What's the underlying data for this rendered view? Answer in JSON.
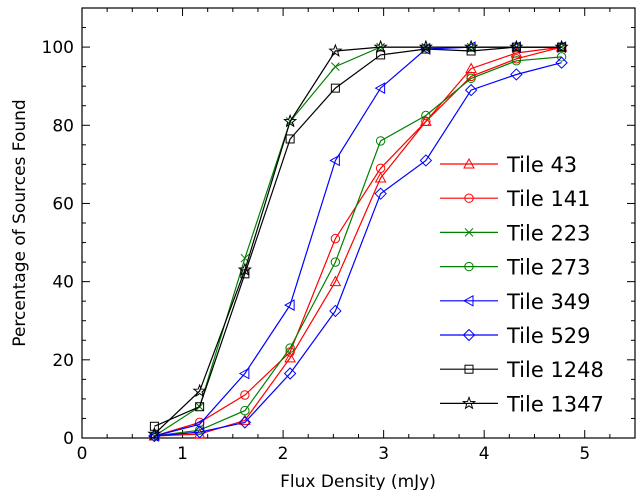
{
  "chart_data": {
    "type": "line",
    "title": "",
    "xlabel": "Flux Density (mJy)",
    "ylabel": "Percentage of Sources Found",
    "xlim": [
      0,
      5.5
    ],
    "ylim": [
      0,
      110
    ],
    "xticks": [
      0,
      1,
      2,
      3,
      4,
      5
    ],
    "yticks": [
      0,
      20,
      40,
      60,
      80,
      100
    ],
    "grid": false,
    "legend_position": "center-right",
    "x": [
      0.72,
      1.17,
      1.62,
      2.07,
      2.52,
      2.97,
      3.42,
      3.87,
      4.32,
      4.77
    ],
    "series": [
      {
        "name": "Tile 43",
        "color": "#ff0000",
        "marker": "triangle-up",
        "values": [
          0.5,
          1.0,
          4.5,
          20.5,
          40.0,
          66.5,
          81.0,
          94.5,
          98.5,
          100.0
        ]
      },
      {
        "name": "Tile 141",
        "color": "#ff0000",
        "marker": "circle",
        "values": [
          0.5,
          4.0,
          11.0,
          22.0,
          51.0,
          69.0,
          81.0,
          92.5,
          97.0,
          100.0
        ]
      },
      {
        "name": "Tile 223",
        "color": "#008000",
        "marker": "x",
        "values": [
          0.5,
          8.0,
          46.0,
          81.0,
          95.0,
          100.0,
          100.0,
          100.0,
          100.0,
          100.0
        ]
      },
      {
        "name": "Tile 273",
        "color": "#008000",
        "marker": "circle",
        "values": [
          0.5,
          2.0,
          7.0,
          23.0,
          45.0,
          76.0,
          82.5,
          92.0,
          96.5,
          97.5
        ]
      },
      {
        "name": "Tile 349",
        "color": "#0000ff",
        "marker": "triangle-left",
        "values": [
          0.5,
          3.5,
          16.5,
          34.0,
          71.0,
          89.5,
          99.5,
          100.0,
          100.0,
          100.0
        ]
      },
      {
        "name": "Tile 529",
        "color": "#0000ff",
        "marker": "diamond",
        "values": [
          0.5,
          1.5,
          4.0,
          16.5,
          32.5,
          62.5,
          71.0,
          89.0,
          93.0,
          96.0
        ]
      },
      {
        "name": "Tile 1248",
        "color": "#000000",
        "marker": "square",
        "values": [
          3.0,
          8.0,
          42.0,
          76.5,
          89.5,
          98.0,
          99.5,
          99.0,
          100.0,
          100.0
        ]
      },
      {
        "name": "Tile 1347",
        "color": "#000000",
        "marker": "star",
        "values": [
          1.0,
          12.0,
          43.0,
          81.0,
          99.0,
          100.0,
          100.0,
          100.0,
          100.0,
          100.0
        ]
      }
    ]
  }
}
